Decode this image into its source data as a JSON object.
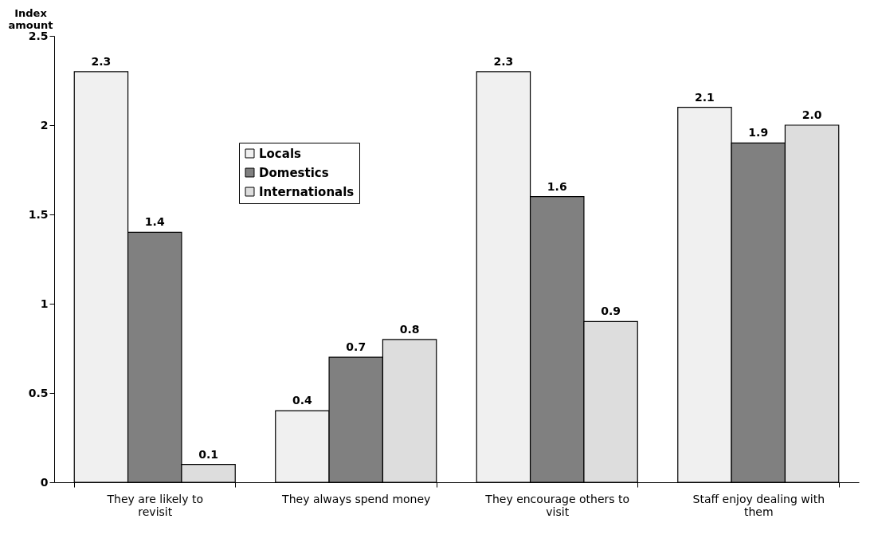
{
  "chart_data": {
    "type": "bar",
    "ylabel": "Index amount",
    "categories": [
      "They are likely to revisit",
      "They always spend money",
      "They encourage others to visit",
      "Staff enjoy dealing with them"
    ],
    "series": [
      {
        "name": "Locals",
        "color": "#f0f0f0",
        "values": [
          2.3,
          0.4,
          2.3,
          2.1
        ],
        "value_labels": [
          "2.3",
          "0.4",
          "2.3",
          "2.1"
        ]
      },
      {
        "name": "Domestics",
        "color": "#808080",
        "values": [
          1.4,
          0.7,
          1.6,
          1.9
        ],
        "value_labels": [
          "1.4",
          "0.7",
          "1.6",
          "1.9"
        ]
      },
      {
        "name": "Internationals",
        "color": "#dddddd",
        "values": [
          0.1,
          0.8,
          0.9,
          2.0
        ],
        "value_labels": [
          "0.1",
          "0.8",
          "0.9",
          "2.0"
        ]
      }
    ],
    "ylim": [
      0,
      2.5
    ],
    "yticks": [
      0,
      0.5,
      1,
      1.5,
      2,
      2.5
    ],
    "legend": "top left"
  }
}
